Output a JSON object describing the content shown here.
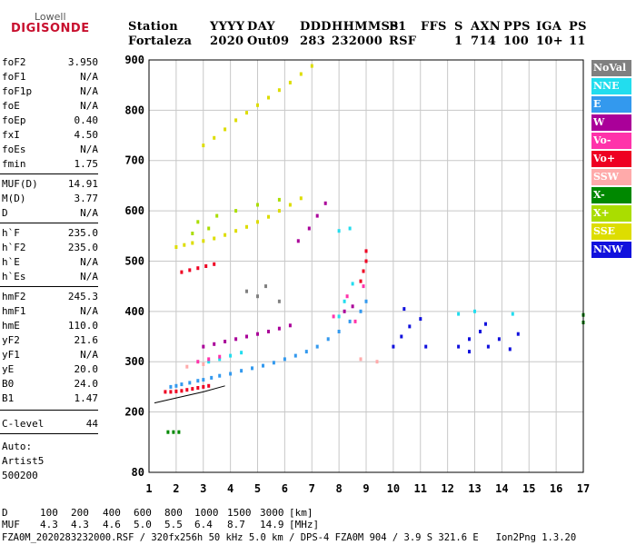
{
  "logo": {
    "line1": "Lowell",
    "line2": "DIGISONDE"
  },
  "header": {
    "labels": [
      "Station",
      "YYYY",
      "DAY",
      "DDD",
      "HHMMSS",
      "P1",
      "FFS",
      "S",
      "AXN",
      "PPS",
      "IGA",
      "PS"
    ],
    "values": [
      "Fortaleza",
      "2020",
      "Out09",
      "283",
      "232000",
      "RSF",
      "1",
      "714",
      "100",
      "10+",
      "11"
    ]
  },
  "params": {
    "group1": [
      {
        "label": "foF2",
        "value": "3.950"
      },
      {
        "label": "foF1",
        "value": "N/A"
      },
      {
        "label": "foF1p",
        "value": "N/A"
      },
      {
        "label": "foE",
        "value": "N/A"
      },
      {
        "label": "foEp",
        "value": "0.40"
      },
      {
        "label": "fxI",
        "value": "4.50"
      },
      {
        "label": "foEs",
        "value": "N/A"
      },
      {
        "label": "fmin",
        "value": "1.75"
      }
    ],
    "group2": [
      {
        "label": "MUF(D)",
        "value": "14.91"
      },
      {
        "label": "M(D)",
        "value": "3.77"
      },
      {
        "label": "D",
        "value": "N/A"
      }
    ],
    "group3": [
      {
        "label": "h`F",
        "value": "235.0"
      },
      {
        "label": "h`F2",
        "value": "235.0"
      },
      {
        "label": "h`E",
        "value": "N/A"
      },
      {
        "label": "h`Es",
        "value": "N/A"
      }
    ],
    "group4": [
      {
        "label": "hmF2",
        "value": "245.3"
      },
      {
        "label": "hmF1",
        "value": "N/A"
      },
      {
        "label": "hmE",
        "value": "110.0"
      },
      {
        "label": "yF2",
        "value": "21.6"
      },
      {
        "label": "yF1",
        "value": "N/A"
      },
      {
        "label": "yE",
        "value": "20.0"
      },
      {
        "label": "B0",
        "value": "24.0"
      },
      {
        "label": "B1",
        "value": "1.47"
      }
    ],
    "group5": [
      {
        "label": "C-level",
        "value": "44"
      }
    ],
    "auto": [
      "Auto:",
      "Artist5",
      "500200"
    ]
  },
  "legend": [
    {
      "label": "NoVal",
      "color": "#808080"
    },
    {
      "label": "NNE",
      "color": "#22ddee"
    },
    {
      "label": "E",
      "color": "#3399ee"
    },
    {
      "label": "W",
      "color": "#aa0099"
    },
    {
      "label": "Vo-",
      "color": "#ff33aa"
    },
    {
      "label": "Vo+",
      "color": "#ee0022"
    },
    {
      "label": "SSW",
      "color": "#ffaaaa"
    },
    {
      "label": "X-",
      "color": "#008800"
    },
    {
      "label": "X+",
      "color": "#aadd00"
    },
    {
      "label": "SSE",
      "color": "#dddd00"
    },
    {
      "label": "NNW",
      "color": "#1111dd"
    }
  ],
  "chart_data": {
    "type": "scatter",
    "title": "",
    "xlabel": "",
    "ylabel": "",
    "xlim": [
      1,
      17
    ],
    "ylim": [
      80,
      900
    ],
    "xticks": [
      "1",
      "2",
      "3",
      "4",
      "5",
      "6",
      "7",
      "8",
      "9",
      "10",
      "11",
      "12",
      "13",
      "14",
      "15",
      "16",
      "17"
    ],
    "yticks": [
      "80",
      "200",
      "300",
      "400",
      "500",
      "600",
      "700",
      "800",
      "900"
    ],
    "ytick_values": [
      80,
      200,
      300,
      400,
      500,
      600,
      700,
      800,
      900
    ],
    "grid": true,
    "series": [
      {
        "color": "#3399ee",
        "points": [
          [
            1.8,
            250
          ],
          [
            2.0,
            252
          ],
          [
            2.2,
            255
          ],
          [
            2.5,
            258
          ],
          [
            2.8,
            262
          ],
          [
            3.0,
            264
          ],
          [
            3.3,
            268
          ],
          [
            3.6,
            272
          ],
          [
            4.0,
            276
          ],
          [
            4.4,
            282
          ],
          [
            4.8,
            287
          ],
          [
            5.2,
            292
          ],
          [
            5.6,
            298
          ],
          [
            6.0,
            305
          ],
          [
            6.4,
            312
          ],
          [
            6.8,
            320
          ],
          [
            7.2,
            330
          ],
          [
            7.6,
            345
          ],
          [
            8.0,
            360
          ],
          [
            8.4,
            380
          ],
          [
            8.8,
            400
          ],
          [
            9.0,
            420
          ]
        ]
      },
      {
        "color": "#ee0022",
        "points": [
          [
            1.6,
            240
          ],
          [
            1.8,
            240
          ],
          [
            2.0,
            241
          ],
          [
            2.2,
            242
          ],
          [
            2.4,
            244
          ],
          [
            2.6,
            246
          ],
          [
            2.8,
            248
          ],
          [
            3.0,
            250
          ],
          [
            3.2,
            252
          ],
          [
            2.2,
            478
          ],
          [
            2.5,
            482
          ],
          [
            2.8,
            486
          ],
          [
            3.1,
            490
          ],
          [
            3.4,
            494
          ],
          [
            8.8,
            460
          ],
          [
            8.9,
            480
          ],
          [
            9.0,
            500
          ],
          [
            9.0,
            520
          ]
        ]
      },
      {
        "color": "#aa0099",
        "points": [
          [
            3.0,
            330
          ],
          [
            3.4,
            335
          ],
          [
            3.8,
            340
          ],
          [
            4.2,
            345
          ],
          [
            4.6,
            350
          ],
          [
            5.0,
            355
          ],
          [
            5.4,
            360
          ],
          [
            5.8,
            366
          ],
          [
            6.2,
            372
          ],
          [
            8.2,
            400
          ],
          [
            8.5,
            410
          ],
          [
            6.5,
            540
          ],
          [
            6.9,
            565
          ],
          [
            7.2,
            590
          ],
          [
            7.5,
            615
          ]
        ]
      },
      {
        "color": "#22ddee",
        "points": [
          [
            3.2,
            300
          ],
          [
            3.6,
            305
          ],
          [
            4.0,
            312
          ],
          [
            4.4,
            318
          ],
          [
            8.0,
            390
          ],
          [
            8.2,
            420
          ],
          [
            8.5,
            455
          ],
          [
            8.0,
            560
          ],
          [
            8.4,
            565
          ],
          [
            12.4,
            395
          ],
          [
            13.0,
            400
          ],
          [
            14.4,
            395
          ]
        ]
      },
      {
        "color": "#dddd00",
        "points": [
          [
            2.0,
            528
          ],
          [
            2.3,
            532
          ],
          [
            2.6,
            536
          ],
          [
            3.0,
            540
          ],
          [
            3.4,
            545
          ],
          [
            3.8,
            552
          ],
          [
            4.2,
            560
          ],
          [
            4.6,
            568
          ],
          [
            5.0,
            578
          ],
          [
            5.4,
            588
          ],
          [
            5.8,
            600
          ],
          [
            6.2,
            612
          ],
          [
            6.6,
            625
          ],
          [
            3.0,
            730
          ],
          [
            3.4,
            745
          ],
          [
            3.8,
            762
          ],
          [
            4.2,
            780
          ],
          [
            4.6,
            795
          ],
          [
            5.0,
            810
          ],
          [
            5.4,
            825
          ],
          [
            5.8,
            840
          ],
          [
            6.2,
            855
          ],
          [
            6.6,
            872
          ],
          [
            7.0,
            888
          ]
        ]
      },
      {
        "color": "#aadd00",
        "points": [
          [
            2.8,
            578
          ],
          [
            3.5,
            590
          ],
          [
            4.2,
            600
          ],
          [
            5.0,
            612
          ],
          [
            5.8,
            622
          ],
          [
            2.6,
            555
          ],
          [
            3.2,
            565
          ]
        ]
      },
      {
        "color": "#1111dd",
        "points": [
          [
            10.0,
            330
          ],
          [
            10.3,
            350
          ],
          [
            10.6,
            370
          ],
          [
            11.0,
            385
          ],
          [
            10.4,
            405
          ],
          [
            11.2,
            330
          ],
          [
            12.4,
            330
          ],
          [
            12.8,
            345
          ],
          [
            13.2,
            360
          ],
          [
            13.5,
            330
          ],
          [
            13.9,
            345
          ],
          [
            14.3,
            325
          ],
          [
            14.6,
            355
          ],
          [
            12.8,
            320
          ],
          [
            13.4,
            375
          ]
        ]
      },
      {
        "color": "#ff33aa",
        "points": [
          [
            2.8,
            300
          ],
          [
            3.2,
            305
          ],
          [
            3.6,
            310
          ],
          [
            8.6,
            380
          ],
          [
            8.9,
            450
          ],
          [
            7.8,
            390
          ],
          [
            8.3,
            430
          ]
        ]
      },
      {
        "color": "#ffaaaa",
        "points": [
          [
            2.4,
            290
          ],
          [
            3.0,
            295
          ],
          [
            8.8,
            305
          ],
          [
            9.4,
            300
          ]
        ]
      },
      {
        "color": "#008800",
        "points": [
          [
            1.7,
            160
          ],
          [
            1.9,
            160
          ],
          [
            2.1,
            160
          ],
          [
            17.0,
            393
          ],
          [
            17.0,
            378
          ]
        ]
      },
      {
        "color": "#808080",
        "points": [
          [
            4.6,
            440
          ],
          [
            5.0,
            430
          ],
          [
            5.3,
            450
          ],
          [
            5.8,
            420
          ]
        ]
      }
    ],
    "curves": [
      {
        "color": "#000000",
        "points": [
          [
            1.2,
            218
          ],
          [
            2.0,
            228
          ],
          [
            3.0,
            240
          ],
          [
            3.8,
            252
          ]
        ]
      }
    ]
  },
  "dscale": {
    "d_label": "D",
    "d_values": [
      "100",
      "200",
      "400",
      "600",
      "800",
      "1000",
      "1500",
      "3000",
      "[km]"
    ],
    "muf_label": "MUF",
    "muf_values": [
      "4.3",
      "4.3",
      "4.6",
      "5.0",
      "5.5",
      "6.4",
      "8.7",
      "14.9",
      "[MHz]"
    ]
  },
  "footer": "FZA0M_2020283232000.RSF / 320fx256h 50 kHz 5.0 km / DPS-4 FZA0M 904 / 3.9 S 321.6 E   Ion2Png 1.3.20"
}
